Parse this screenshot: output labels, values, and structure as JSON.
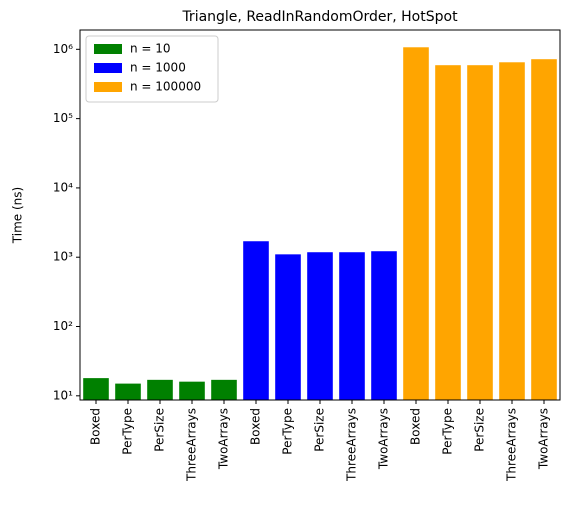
{
  "chart_data": {
    "type": "bar",
    "title": "Triangle, ReadInRandomOrder, HotSpot",
    "ylabel": "Time (ns)",
    "categories": [
      "Boxed",
      "PerType",
      "PerSize",
      "ThreeArrays",
      "TwoArrays",
      "Boxed",
      "PerType",
      "PerSize",
      "ThreeArrays",
      "TwoArrays",
      "Boxed",
      "PerType",
      "PerSize",
      "ThreeArrays",
      "TwoArrays"
    ],
    "series": [
      {
        "name": "n = 10",
        "color": "#008000",
        "values": [
          18,
          15,
          17,
          16,
          17,
          null,
          null,
          null,
          null,
          null,
          null,
          null,
          null,
          null,
          null
        ]
      },
      {
        "name": "n = 1000",
        "color": "#0000ff",
        "values": [
          null,
          null,
          null,
          null,
          null,
          1700,
          1100,
          1180,
          1180,
          1220,
          null,
          null,
          null,
          null,
          null
        ]
      },
      {
        "name": "n = 100000",
        "color": "#ffa500",
        "values": [
          null,
          null,
          null,
          null,
          null,
          null,
          null,
          null,
          null,
          null,
          1070000,
          590000,
          590000,
          650000,
          720000
        ]
      }
    ],
    "log_scale": true,
    "ylim": [
      8.7,
      1900000
    ],
    "yticks": [
      {
        "value": 10,
        "label": "10¹"
      },
      {
        "value": 100,
        "label": "10²"
      },
      {
        "value": 1000,
        "label": "10³"
      },
      {
        "value": 10000,
        "label": "10⁴"
      },
      {
        "value": 100000,
        "label": "10⁵"
      },
      {
        "value": 1000000,
        "label": "10⁶"
      }
    ],
    "legend": "upper-left"
  }
}
